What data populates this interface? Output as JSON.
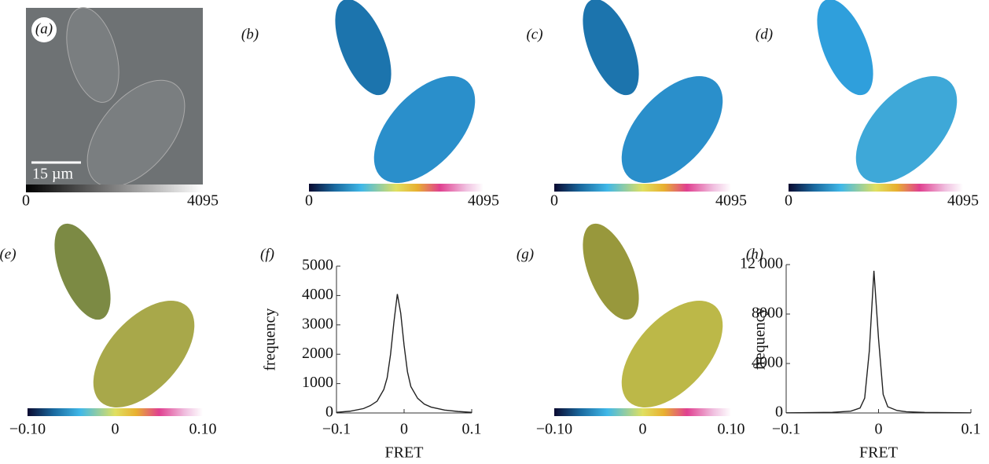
{
  "image_panels": [
    {
      "label": "(a)",
      "colorbar_labels": [
        "0",
        "4095"
      ],
      "scale_bar": "15 µm"
    },
    {
      "label": "(b)",
      "colorbar_labels": [
        "0",
        "4095"
      ]
    },
    {
      "label": "(c)",
      "colorbar_labels": [
        "0",
        "4095"
      ]
    },
    {
      "label": "(d)",
      "colorbar_labels": [
        "0",
        "4095"
      ]
    },
    {
      "label": "(e)",
      "colorbar_labels": [
        "−0.10",
        "0",
        "0.10"
      ]
    },
    {
      "label": "(g)",
      "colorbar_labels": [
        "−0.10",
        "0",
        "0.10"
      ]
    }
  ],
  "chart_data": [
    {
      "type": "line",
      "panel_label": "(f)",
      "x_label": "FRET",
      "y_label": "frequency",
      "color": "#222",
      "x": [
        -0.1,
        -0.08,
        -0.06,
        -0.05,
        -0.04,
        -0.03,
        -0.025,
        -0.02,
        -0.015,
        -0.01,
        -0.005,
        0,
        0.005,
        0.01,
        0.02,
        0.03,
        0.04,
        0.06,
        0.08,
        0.1
      ],
      "values": [
        20,
        60,
        150,
        250,
        400,
        800,
        1200,
        2000,
        3100,
        4050,
        3400,
        2300,
        1400,
        900,
        500,
        300,
        200,
        100,
        50,
        20
      ],
      "xlim": [
        -0.1,
        0.1
      ],
      "xticks": [
        {
          "value": -0.1,
          "label": "−0.1"
        },
        0,
        0.1
      ],
      "ylim": [
        0,
        5000
      ],
      "yticks": [
        0,
        1000,
        2000,
        3000,
        4000,
        5000
      ]
    },
    {
      "type": "line",
      "panel_label": "(h)",
      "x_label": "FRET",
      "y_label": "frequency",
      "color": "#222",
      "x": [
        -0.1,
        -0.05,
        -0.03,
        -0.02,
        -0.015,
        -0.01,
        -0.005,
        0,
        0.005,
        0.01,
        0.02,
        0.03,
        0.05,
        0.1
      ],
      "values": [
        10,
        50,
        150,
        400,
        1200,
        5000,
        11500,
        6000,
        1500,
        500,
        200,
        100,
        40,
        10
      ],
      "xlim": [
        -0.1,
        0.1
      ],
      "xticks": [
        {
          "value": -0.1,
          "label": "−0.1"
        },
        0,
        0.1
      ],
      "ylim": [
        0,
        12000
      ],
      "yticks": [
        0,
        4000,
        8000,
        {
          "value": 12000,
          "label": "12 000"
        }
      ]
    }
  ]
}
